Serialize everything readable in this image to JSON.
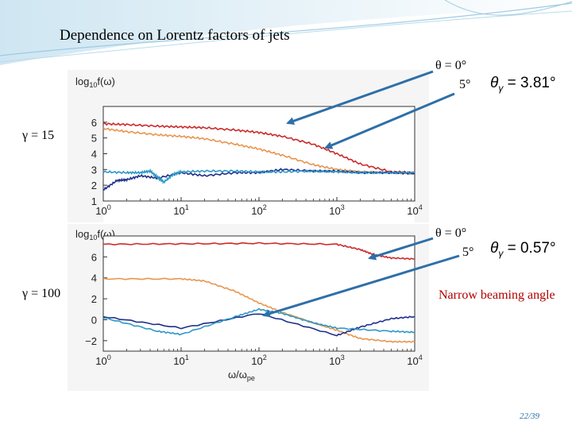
{
  "slide": {
    "title": "Dependence on Lorentz factors of jets",
    "page": "22/39",
    "narrow_note": "Narrow beaming angle",
    "accent_color": "#1f6fa0"
  },
  "labels": {
    "gamma15": "γ = 15",
    "gamma100": "γ = 100",
    "theta0_a": "θ = 0°",
    "theta5_a": "5°",
    "theta0_b": "θ = 0°",
    "theta5_b": "5°",
    "theta_gamma_sym": "θγ",
    "theta_gamma_15": "= 3.81°",
    "theta_gamma_100": "= 0.57°"
  },
  "chart_data": [
    {
      "type": "line",
      "ylabel": "log10 f(ω)",
      "xscale": "log",
      "xlim": [
        1,
        10000
      ],
      "ylim": [
        1,
        7
      ],
      "xticks": [
        "10^0",
        "10^1",
        "10^2",
        "10^3",
        "10^4"
      ],
      "yticks": [
        "1",
        "2",
        "3",
        "4",
        "5",
        "6"
      ],
      "series": [
        {
          "color": "#cc2a2a",
          "x": [
            1,
            2,
            5,
            10,
            20,
            50,
            100,
            200,
            500,
            1000,
            2000,
            5000,
            10000
          ],
          "y": [
            5.9,
            5.85,
            5.75,
            5.7,
            5.65,
            5.5,
            5.35,
            5.1,
            4.6,
            4.0,
            3.35,
            2.85,
            2.8
          ]
        },
        {
          "color": "#e8954f",
          "x": [
            1,
            2,
            5,
            10,
            20,
            50,
            100,
            200,
            500,
            1000,
            2000,
            5000,
            10000
          ],
          "y": [
            5.6,
            5.4,
            5.2,
            5.1,
            4.95,
            4.6,
            4.3,
            3.9,
            3.3,
            3.0,
            2.85,
            2.8,
            2.75
          ]
        },
        {
          "color": "#1f2f8c",
          "x": [
            1,
            1.5,
            2,
            3,
            5,
            10,
            20,
            50,
            100,
            200,
            500,
            1000,
            2000,
            5000,
            10000
          ],
          "y": [
            1.7,
            2.3,
            2.35,
            2.6,
            2.45,
            2.8,
            2.6,
            2.8,
            2.8,
            3.0,
            2.9,
            2.9,
            2.8,
            2.8,
            2.75
          ]
        },
        {
          "color": "#2e98c4",
          "x": [
            1,
            2,
            3,
            4,
            5,
            6,
            8,
            10,
            20,
            50,
            100,
            200,
            500,
            1000,
            2000,
            5000,
            10000
          ],
          "y": [
            2.85,
            2.8,
            2.8,
            2.9,
            2.5,
            2.2,
            2.7,
            2.85,
            2.9,
            2.9,
            2.85,
            2.85,
            2.9,
            2.85,
            2.8,
            2.8,
            2.8
          ]
        }
      ]
    },
    {
      "type": "line",
      "xlabel": "ω/ωpe",
      "ylabel": "log10 f(ω)",
      "xscale": "log",
      "xlim": [
        1,
        10000
      ],
      "ylim": [
        -3,
        8
      ],
      "xticks": [
        "10^0",
        "10^1",
        "10^2",
        "10^3",
        "10^4"
      ],
      "yticks": [
        "−2",
        "0",
        "2",
        "4",
        "6"
      ],
      "series": [
        {
          "color": "#cc2a2a",
          "x": [
            1,
            10,
            100,
            1000,
            2000,
            3000,
            5000,
            10000
          ],
          "y": [
            7.2,
            7.25,
            7.3,
            7.2,
            6.7,
            6.2,
            5.9,
            5.8
          ]
        },
        {
          "color": "#e8954f",
          "x": [
            1,
            10,
            20,
            50,
            100,
            200,
            500,
            1000,
            2000,
            5000,
            10000
          ],
          "y": [
            3.9,
            3.9,
            3.7,
            2.7,
            1.6,
            0.7,
            -0.3,
            -1.0,
            -1.8,
            -2.1,
            -2.1
          ]
        },
        {
          "color": "#1f2f8c",
          "x": [
            1,
            10,
            100,
            1000,
            2000,
            5000,
            10000
          ],
          "y": [
            0.3,
            -0.8,
            0.6,
            -1.5,
            -0.7,
            0.1,
            0.3
          ]
        },
        {
          "color": "#2e98c4",
          "x": [
            1,
            5,
            10,
            50,
            100,
            200,
            500,
            1000,
            5000,
            10000
          ],
          "y": [
            0.2,
            -1.1,
            -1.4,
            0.3,
            1.0,
            0.6,
            -0.3,
            -0.8,
            -1.1,
            -1.2
          ]
        }
      ]
    }
  ]
}
